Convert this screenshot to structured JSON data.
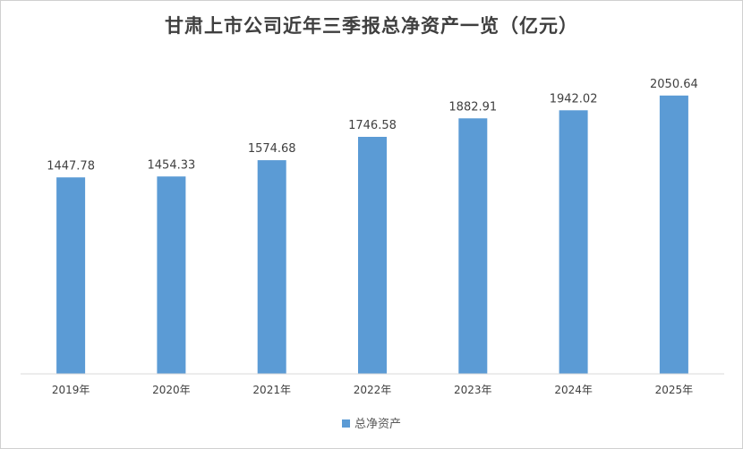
{
  "chart_data": {
    "type": "bar",
    "title": "甘肃上市公司近年三季报总净资产一览（亿元）",
    "categories": [
      "2019年",
      "2020年",
      "2021年",
      "2022年",
      "2023年",
      "2024年",
      "2025年"
    ],
    "series": [
      {
        "name": "总净资产",
        "values": [
          1447.78,
          1454.33,
          1574.68,
          1746.58,
          1882.91,
          1942.02,
          2050.64
        ],
        "labels": [
          "1447.78",
          "1454.33",
          "1574.68",
          "1746.58",
          "1882.91",
          "1942.02",
          "2050.64"
        ]
      }
    ],
    "ylim": [
      0,
      2300
    ],
    "grid": false,
    "legend_position": "bottom",
    "bar_color": "#5b9bd5"
  }
}
